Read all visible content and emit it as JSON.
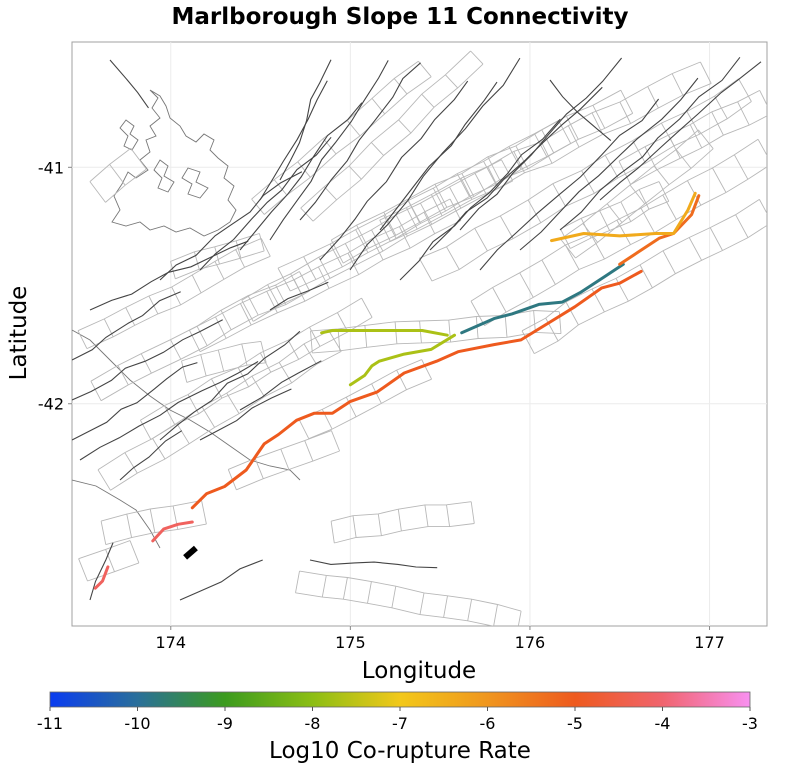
{
  "chart_data": {
    "type": "map",
    "title": "Marlborough Slope 11 Connectivity",
    "xlabel": "Longitude",
    "ylabel": "Latitude",
    "xlim": [
      173.45,
      177.32
    ],
    "ylim": [
      -42.94,
      -40.47
    ],
    "xticks": [
      174,
      175,
      176,
      177
    ],
    "xtick_labels": [
      "174",
      "175",
      "176",
      "177"
    ],
    "yticks": [
      -41,
      -42
    ],
    "ytick_labels": [
      "-41",
      "-42"
    ],
    "grid": true,
    "colorbar": {
      "label": "Log10 Co-rupture Rate",
      "min": -11,
      "max": -3,
      "ticks": [
        -11,
        -10,
        -9,
        -8,
        -7,
        -6,
        -5,
        -4,
        -3
      ],
      "tick_labels": [
        "-11",
        "-10",
        "-9",
        "-8",
        "-7",
        "-6",
        "-5",
        "-4",
        "-3"
      ],
      "stops": [
        {
          "value": -11,
          "color": "#0a3cf0"
        },
        {
          "value": -10,
          "color": "#2a6f9a"
        },
        {
          "value": -9,
          "color": "#3c9b1e"
        },
        {
          "value": -8,
          "color": "#8cbe14"
        },
        {
          "value": -7,
          "color": "#f2c81a"
        },
        {
          "value": -6,
          "color": "#f0961e"
        },
        {
          "value": -5,
          "color": "#ee5a1e"
        },
        {
          "value": -4,
          "color": "#f0646e"
        },
        {
          "value": -3,
          "color": "#f890f0"
        }
      ]
    },
    "source_fault": {
      "name": "Marlborough Slope 11",
      "color": "#000000",
      "path": [
        [
          174.08,
          -42.65
        ],
        [
          174.14,
          -42.61
        ]
      ]
    },
    "coruptures": [
      {
        "log10_rate": -5.0,
        "path": [
          [
            174.12,
            -42.44
          ],
          [
            174.2,
            -42.38
          ],
          [
            174.3,
            -42.35
          ],
          [
            174.42,
            -42.28
          ],
          [
            174.52,
            -42.17
          ],
          [
            174.6,
            -42.13
          ],
          [
            174.7,
            -42.07
          ],
          [
            174.8,
            -42.04
          ],
          [
            174.9,
            -42.04
          ],
          [
            175.0,
            -41.99
          ],
          [
            175.15,
            -41.95
          ],
          [
            175.3,
            -41.87
          ],
          [
            175.48,
            -41.82
          ],
          [
            175.6,
            -41.78
          ],
          [
            175.8,
            -41.75
          ],
          [
            175.95,
            -41.73
          ],
          [
            176.1,
            -41.66
          ],
          [
            176.25,
            -41.59
          ],
          [
            176.4,
            -41.51
          ],
          [
            176.5,
            -41.49
          ],
          [
            176.62,
            -41.44
          ]
        ]
      },
      {
        "log10_rate": -9.8,
        "path": [
          [
            175.62,
            -41.7
          ],
          [
            175.8,
            -41.64
          ],
          [
            175.9,
            -41.62
          ],
          [
            176.05,
            -41.58
          ],
          [
            176.18,
            -41.57
          ],
          [
            176.28,
            -41.53
          ],
          [
            176.42,
            -41.46
          ],
          [
            176.52,
            -41.41
          ]
        ]
      },
      {
        "log10_rate": -5.3,
        "path": [
          [
            176.5,
            -41.41
          ],
          [
            176.6,
            -41.36
          ],
          [
            176.72,
            -41.3
          ],
          [
            176.8,
            -41.28
          ],
          [
            176.9,
            -41.2
          ],
          [
            176.94,
            -41.12
          ]
        ]
      },
      {
        "log10_rate": -6.4,
        "path": [
          [
            176.12,
            -41.31
          ],
          [
            176.3,
            -41.28
          ],
          [
            176.5,
            -41.29
          ],
          [
            176.7,
            -41.28
          ],
          [
            176.8,
            -41.28
          ],
          [
            176.88,
            -41.18
          ],
          [
            176.92,
            -41.11
          ]
        ]
      },
      {
        "log10_rate": -7.7,
        "path": [
          [
            174.84,
            -41.7
          ],
          [
            174.9,
            -41.69
          ],
          [
            175.2,
            -41.69
          ],
          [
            175.4,
            -41.69
          ],
          [
            175.54,
            -41.71
          ]
        ]
      },
      {
        "log10_rate": -7.7,
        "path": [
          [
            175.0,
            -41.92
          ],
          [
            175.08,
            -41.88
          ],
          [
            175.12,
            -41.84
          ],
          [
            175.16,
            -41.82
          ],
          [
            175.3,
            -41.79
          ],
          [
            175.45,
            -41.77
          ],
          [
            175.58,
            -41.71
          ]
        ]
      },
      {
        "log10_rate": -4.2,
        "path": [
          [
            173.9,
            -42.58
          ],
          [
            173.96,
            -42.53
          ],
          [
            174.04,
            -42.51
          ],
          [
            174.12,
            -42.5
          ]
        ]
      },
      {
        "log10_rate": -4.2,
        "path": [
          [
            173.58,
            -42.78
          ],
          [
            173.62,
            -42.75
          ],
          [
            173.65,
            -42.69
          ]
        ]
      }
    ]
  }
}
